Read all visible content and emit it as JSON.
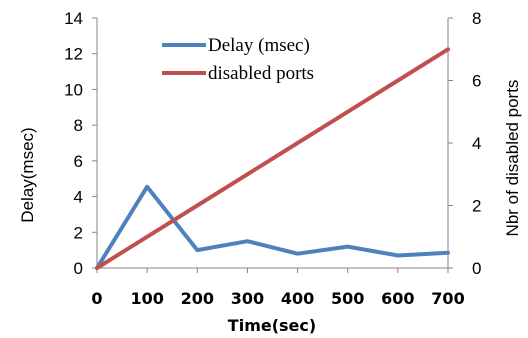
{
  "chart_data": {
    "type": "line",
    "xlabel": "Time(sec)",
    "ylabel_left": "Delay(msec)",
    "ylabel_right": "Nbr of disabled ports",
    "x": [
      0,
      100,
      200,
      300,
      400,
      500,
      600,
      700
    ],
    "x_ticks": [
      0,
      100,
      200,
      300,
      400,
      500,
      600,
      700
    ],
    "y_left_ticks": [
      0,
      2,
      4,
      6,
      8,
      10,
      12,
      14
    ],
    "y_right_ticks": [
      0,
      2,
      4,
      6,
      8
    ],
    "xlim": [
      0,
      700
    ],
    "ylim_left": [
      0,
      14
    ],
    "ylim_right": [
      0,
      8
    ],
    "grid": false,
    "legend_position": "top-center",
    "series": [
      {
        "name": "Delay (msec)",
        "axis": "left",
        "color": "#4f81bd",
        "values": [
          0,
          4.55,
          1.0,
          1.5,
          0.8,
          1.2,
          0.7,
          0.85
        ]
      },
      {
        "name": "disabled ports",
        "axis": "right",
        "color": "#c0504d",
        "values": [
          0,
          1,
          2,
          3,
          4,
          5,
          6,
          7
        ]
      }
    ]
  }
}
